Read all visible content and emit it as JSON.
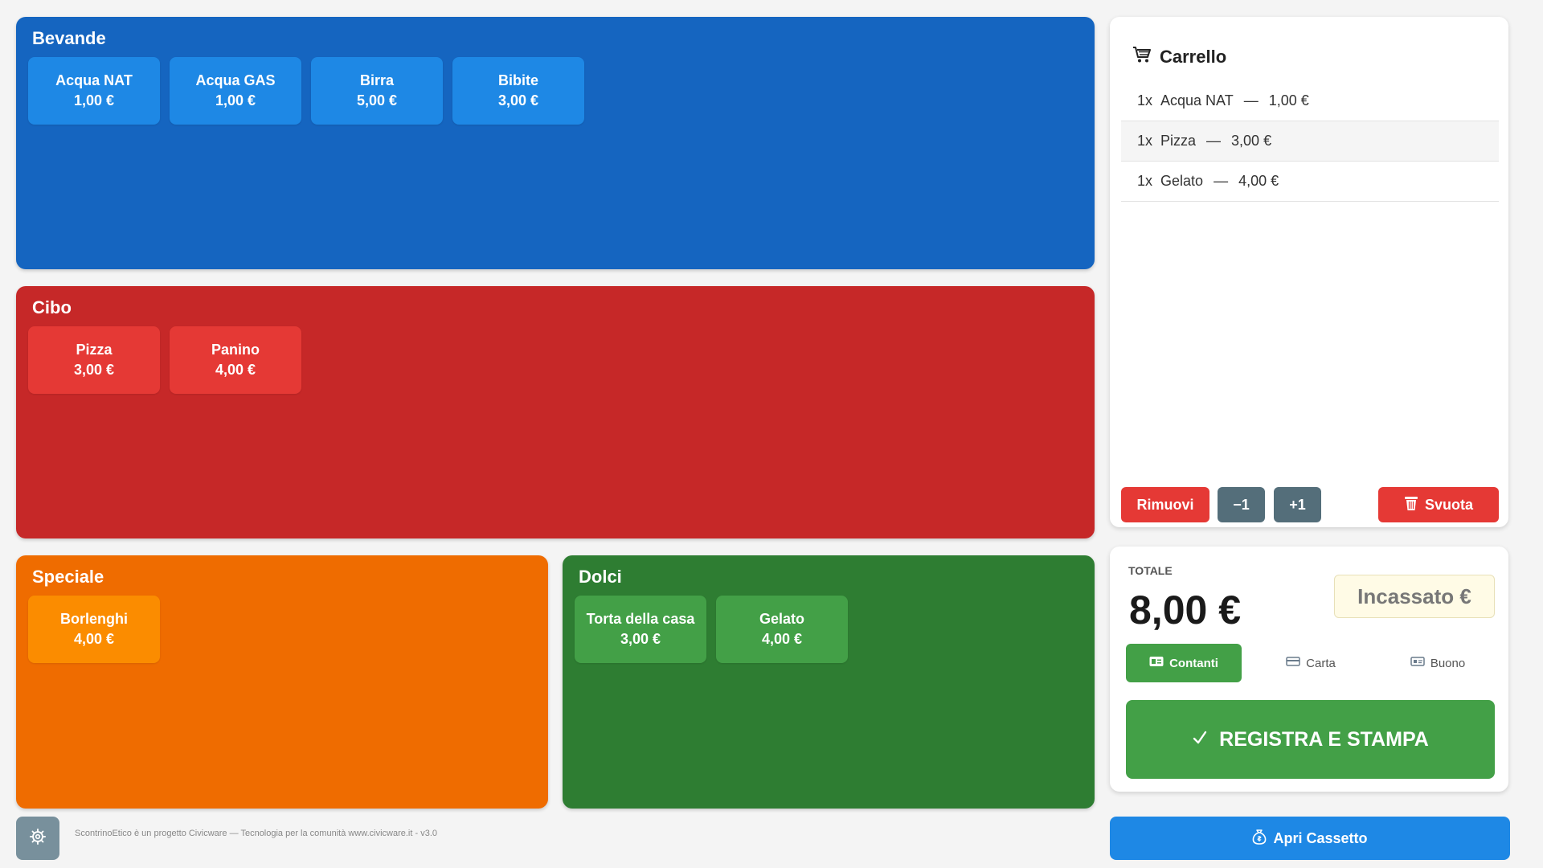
{
  "categories": {
    "bevande": {
      "title": "Bevande",
      "products": [
        {
          "name": "Acqua NAT",
          "price": "1,00 €"
        },
        {
          "name": "Acqua GAS",
          "price": "1,00 €"
        },
        {
          "name": "Birra",
          "price": "5,00 €"
        },
        {
          "name": "Bibite",
          "price": "3,00 €"
        }
      ]
    },
    "cibo": {
      "title": "Cibo",
      "products": [
        {
          "name": "Pizza",
          "price": "3,00 €"
        },
        {
          "name": "Panino",
          "price": "4,00 €"
        }
      ]
    },
    "speciale": {
      "title": "Speciale",
      "products": [
        {
          "name": "Borlenghi",
          "price": "4,00 €"
        }
      ]
    },
    "dolci": {
      "title": "Dolci",
      "products": [
        {
          "name": "Torta della casa",
          "price": "3,00 €"
        },
        {
          "name": "Gelato",
          "price": "4,00 €"
        }
      ]
    }
  },
  "cart": {
    "title": "Carrello",
    "icon": "cart-icon",
    "items": [
      {
        "qty": "1x",
        "name": "Acqua NAT",
        "price": "1,00 €"
      },
      {
        "qty": "1x",
        "name": "Pizza",
        "price": "3,00 €"
      },
      {
        "qty": "1x",
        "name": "Gelato",
        "price": "4,00 €"
      }
    ],
    "separator": "—",
    "actions": {
      "remove": "Rimuovi",
      "minus": "−1",
      "plus": "+1",
      "empty": "Svuota"
    }
  },
  "totals": {
    "label": "TOTALE",
    "value": "8,00 €",
    "received_placeholder": "Incassato €",
    "payment_methods": [
      {
        "label": "Contanti",
        "icon": "cash-icon",
        "selected": true
      },
      {
        "label": "Carta",
        "icon": "card-icon",
        "selected": false
      },
      {
        "label": "Buono",
        "icon": "voucher-icon",
        "selected": false
      }
    ],
    "register_button": "REGISTRA E STAMPA",
    "register_icon": "checkmark-icon"
  },
  "footer": {
    "text": "ScontrinoEtico è un progetto Civicware — Tecnologia per la comunità www.civicware.it - v3.0",
    "settings_icon": "gear-icon",
    "drawer_button": "Apri Cassetto",
    "drawer_icon": "money-bag-icon"
  },
  "colors": {
    "bevande_panel": "#1565c0",
    "bevande_button": "#1e88e5",
    "cibo_panel": "#c62828",
    "cibo_button": "#e53935",
    "speciale_panel": "#ef6c00",
    "speciale_button": "#fb8c00",
    "dolci_panel": "#2e7d32",
    "dolci_button": "#43a047",
    "primary_green": "#43a047",
    "danger_red": "#e53935",
    "neutral_gray": "#546e7a",
    "action_blue": "#1e88e5"
  }
}
